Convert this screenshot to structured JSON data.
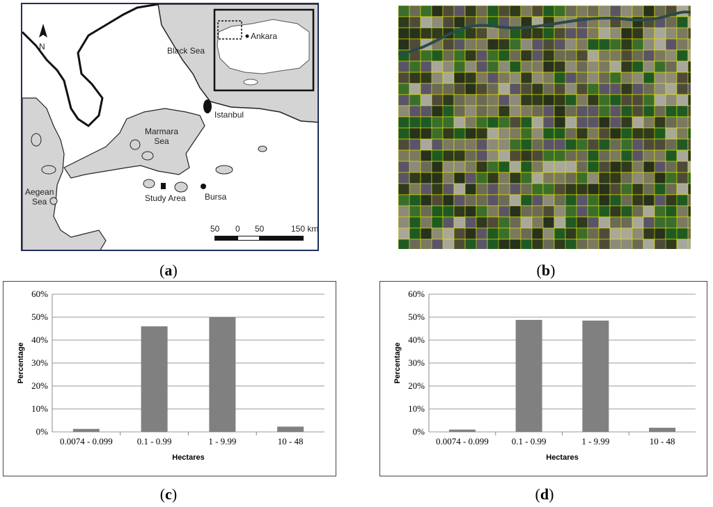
{
  "map": {
    "north_label": "N",
    "black_sea": "Black Sea",
    "marmara_sea": "Marmara\nSea",
    "aegean_sea": "Aegean\nSea",
    "istanbul": "Istanbul",
    "bursa": "Bursa",
    "study_area": "Study Area",
    "ankara": "Ankara",
    "scale_labels": [
      "50",
      "0",
      "50",
      "150 km"
    ]
  },
  "captions": {
    "a": "a",
    "b": "b",
    "c": "c",
    "d": "d"
  },
  "colors": {
    "bar": "#808080",
    "grid": "#9a9a9a",
    "sea": "#d4d4d4",
    "land": "#ffffff",
    "field_outline": "#e6e600"
  },
  "chart_data": [
    {
      "type": "bar",
      "categories": [
        "0.0074 - 0.099",
        "0.1 - 0.99",
        "1 - 9.99",
        "10 - 48"
      ],
      "values": [
        1.3,
        46,
        50,
        2.3
      ],
      "xlabel": "Hectares",
      "ylabel": "Percentage",
      "ylim": [
        0,
        60
      ],
      "yticks": [
        "0%",
        "10%",
        "20%",
        "30%",
        "40%",
        "50%",
        "60%"
      ],
      "grid": true
    },
    {
      "type": "bar",
      "categories": [
        "0.0074 - 0.099",
        "0.1 - 0.99",
        "1 - 9.99",
        "10 - 48"
      ],
      "values": [
        1.0,
        48.8,
        48.5,
        1.8
      ],
      "xlabel": "Hectares",
      "ylabel": "Percentage",
      "ylim": [
        0,
        60
      ],
      "yticks": [
        "0%",
        "10%",
        "20%",
        "30%",
        "40%",
        "50%",
        "60%"
      ],
      "grid": true
    }
  ]
}
